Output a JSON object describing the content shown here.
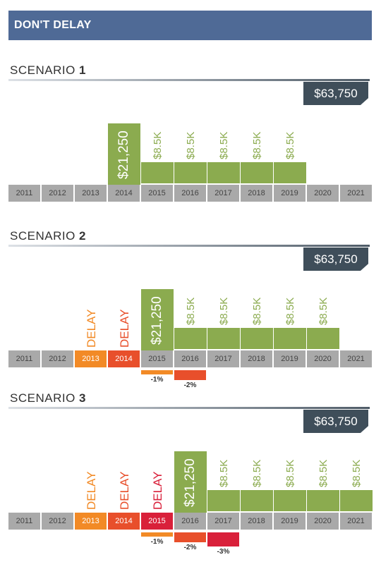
{
  "banner": "DON'T DELAY",
  "colors": {
    "banner": "#4f6a96",
    "year_box": "#a9a9a9",
    "benefit_bar": "#8bab4f",
    "total_box": "#3f4e5a",
    "delay_orange": "#f28a26",
    "delay_red": "#e84f2b",
    "delay_crimson": "#d9203a"
  },
  "years": [
    "2011",
    "2012",
    "2013",
    "2014",
    "2015",
    "2016",
    "2017",
    "2018",
    "2019",
    "2020",
    "2021"
  ],
  "scenarios": [
    {
      "title": "SCENARIO",
      "number": "1",
      "total": "$63,750",
      "lump_year": "2014",
      "lump_label": "$21,250",
      "annual_label": "$8.5K",
      "annual_years": [
        "2015",
        "2016",
        "2017",
        "2018",
        "2019"
      ],
      "delay_years": [],
      "delay_label": "DELAY",
      "penalties": []
    },
    {
      "title": "SCENARIO",
      "number": "2",
      "total": "$63,750",
      "lump_year": "2015",
      "lump_label": "$21,250",
      "annual_label": "$8.5K",
      "annual_years": [
        "2016",
        "2017",
        "2018",
        "2019",
        "2020"
      ],
      "delay_years": [
        "2013",
        "2014"
      ],
      "delay_label": "DELAY",
      "penalties": [
        {
          "year": "2015",
          "label": "-1%"
        },
        {
          "year": "2016",
          "label": "-2%"
        }
      ]
    },
    {
      "title": "SCENARIO",
      "number": "3",
      "total": "$63,750",
      "lump_year": "2016",
      "lump_label": "$21,250",
      "annual_label": "$8.5K",
      "annual_years": [
        "2017",
        "2018",
        "2019",
        "2020",
        "2021"
      ],
      "delay_years": [
        "2013",
        "2014",
        "2015"
      ],
      "delay_label": "DELAY",
      "penalties": [
        {
          "year": "2015",
          "label": "-1%"
        },
        {
          "year": "2016",
          "label": "-2%"
        },
        {
          "year": "2017",
          "label": "-3%"
        }
      ]
    }
  ]
}
